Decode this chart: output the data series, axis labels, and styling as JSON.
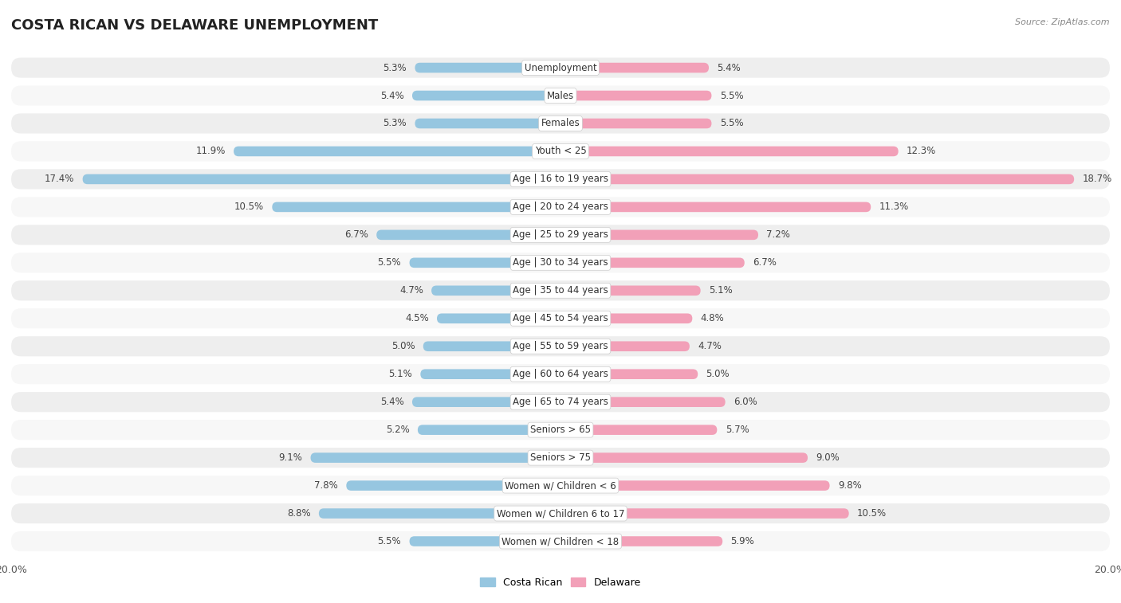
{
  "title": "COSTA RICAN VS DELAWARE UNEMPLOYMENT",
  "source": "Source: ZipAtlas.com",
  "categories": [
    "Unemployment",
    "Males",
    "Females",
    "Youth < 25",
    "Age | 16 to 19 years",
    "Age | 20 to 24 years",
    "Age | 25 to 29 years",
    "Age | 30 to 34 years",
    "Age | 35 to 44 years",
    "Age | 45 to 54 years",
    "Age | 55 to 59 years",
    "Age | 60 to 64 years",
    "Age | 65 to 74 years",
    "Seniors > 65",
    "Seniors > 75",
    "Women w/ Children < 6",
    "Women w/ Children 6 to 17",
    "Women w/ Children < 18"
  ],
  "costa_rican": [
    5.3,
    5.4,
    5.3,
    11.9,
    17.4,
    10.5,
    6.7,
    5.5,
    4.7,
    4.5,
    5.0,
    5.1,
    5.4,
    5.2,
    9.1,
    7.8,
    8.8,
    5.5
  ],
  "delaware": [
    5.4,
    5.5,
    5.5,
    12.3,
    18.7,
    11.3,
    7.2,
    6.7,
    5.1,
    4.8,
    4.7,
    5.0,
    6.0,
    5.7,
    9.0,
    9.8,
    10.5,
    5.9
  ],
  "costa_rican_color": "#96c6e0",
  "delaware_color": "#f2a0b8",
  "row_bg_even": "#eeeeee",
  "row_bg_odd": "#f7f7f7",
  "max_val": 20.0,
  "legend_costa_rican": "Costa Rican",
  "legend_delaware": "Delaware",
  "title_fontsize": 13,
  "label_fontsize": 8.5,
  "value_fontsize": 8.5,
  "source_text": "Source: ZipAtlas.com"
}
